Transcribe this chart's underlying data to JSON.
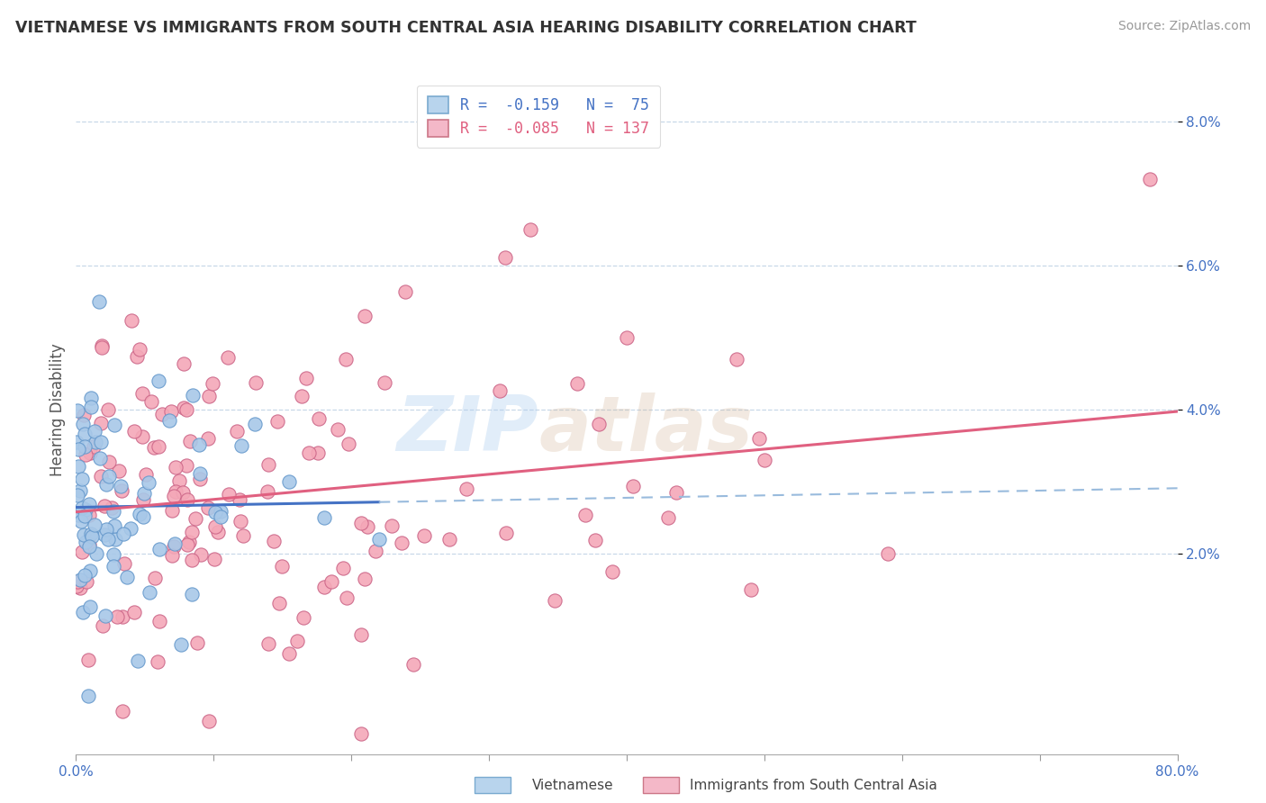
{
  "title": "VIETNAMESE VS IMMIGRANTS FROM SOUTH CENTRAL ASIA HEARING DISABILITY CORRELATION CHART",
  "source": "Source: ZipAtlas.com",
  "ylabel": "Hearing Disability",
  "y_ticks": [
    0.02,
    0.04,
    0.06,
    0.08
  ],
  "y_tick_labels": [
    "2.0%",
    "4.0%",
    "6.0%",
    "8.0%"
  ],
  "xlim": [
    0.0,
    0.8
  ],
  "ylim": [
    -0.008,
    0.088
  ],
  "series_blue": {
    "R": -0.159,
    "N": 75,
    "color": "#a8c8e8",
    "edge_color": "#6699cc",
    "trend_color": "#4472c4",
    "trend_dashed_color": "#99bbdd"
  },
  "series_pink": {
    "R": -0.085,
    "N": 137,
    "color": "#f4a8b8",
    "edge_color": "#cc6688",
    "trend_color": "#e06080"
  },
  "watermark_zip": "ZIP",
  "watermark_atlas": "atlas",
  "background_color": "#ffffff",
  "grid_color": "#c8d8e8",
  "blue_seed": 42,
  "pink_seed": 7
}
